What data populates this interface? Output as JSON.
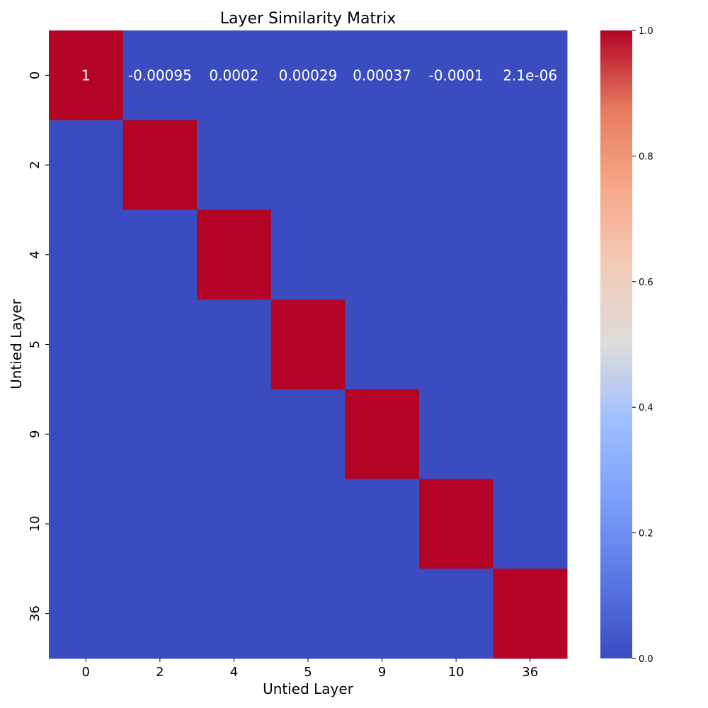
{
  "chart_data": {
    "type": "heatmap",
    "title": "Layer Similarity Matrix",
    "xlabel": "Untied Layer",
    "ylabel": "Untied Layer",
    "x_categories": [
      "0",
      "2",
      "4",
      "5",
      "9",
      "10",
      "36"
    ],
    "y_categories": [
      "0",
      "2",
      "4",
      "5",
      "9",
      "10",
      "36"
    ],
    "values": [
      [
        1,
        -0.00095,
        0.0002,
        0.00029,
        0.00037,
        -0.0001,
        2.1e-06
      ],
      [
        -0.00095,
        1,
        0,
        0,
        0,
        0,
        0
      ],
      [
        0.0002,
        0,
        1,
        0,
        0,
        0,
        0
      ],
      [
        0.00029,
        0,
        0,
        1,
        0,
        0,
        0
      ],
      [
        0.00037,
        0,
        0,
        0,
        1,
        0,
        0
      ],
      [
        -0.0001,
        0,
        0,
        0,
        0,
        1,
        0
      ],
      [
        2.1e-06,
        0,
        0,
        0,
        0,
        0,
        1
      ]
    ],
    "annotations": [
      {
        "row": 0,
        "col": 0,
        "text": "1"
      },
      {
        "row": 0,
        "col": 1,
        "text": "-0.00095"
      },
      {
        "row": 0,
        "col": 2,
        "text": "0.0002"
      },
      {
        "row": 0,
        "col": 3,
        "text": "0.00029"
      },
      {
        "row": 0,
        "col": 4,
        "text": "0.00037"
      },
      {
        "row": 0,
        "col": 5,
        "text": "-0.0001"
      },
      {
        "row": 0,
        "col": 6,
        "text": "2.1e-06"
      }
    ],
    "colormap": "coolwarm",
    "color_low": "#3b4cc0",
    "color_high": "#b40426",
    "vmin": 0.0,
    "vmax": 1.0,
    "colorbar_ticks": [
      "0.0",
      "0.2",
      "0.4",
      "0.6",
      "0.8",
      "1.0"
    ],
    "colorbar_tick_values": [
      0.0,
      0.2,
      0.4,
      0.6,
      0.8,
      1.0
    ],
    "annotation_color": "#ffffff"
  }
}
